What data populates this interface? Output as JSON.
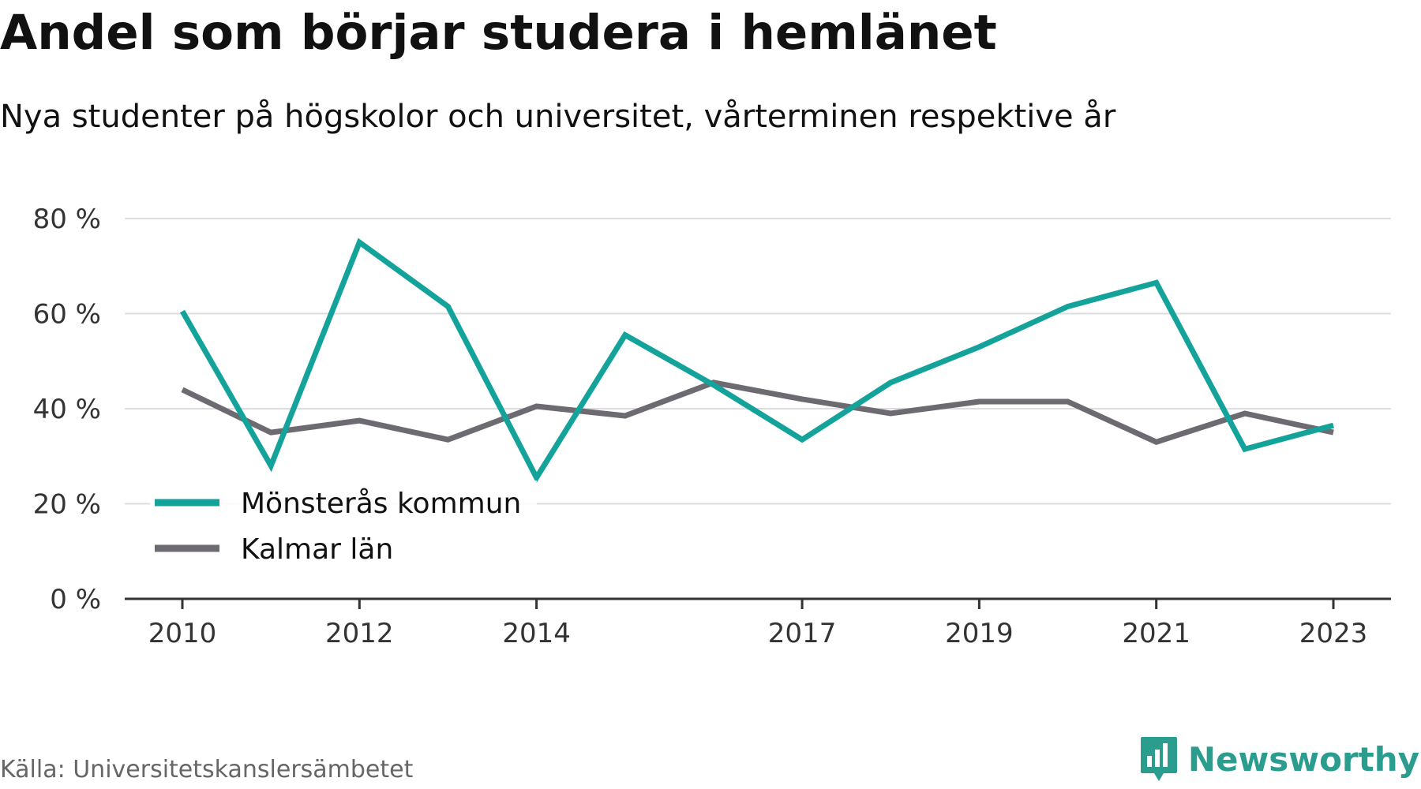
{
  "title": "Andel som börjar studera i hemlänet",
  "subtitle": "Nya studenter på högskolor och universitet, vårterminen respektive år",
  "source": "Källa: Universitetskanslersämbetet",
  "brand": {
    "name": "Newsworthy",
    "icon": "newsworthy-logo-icon",
    "color": "#2a9d8f"
  },
  "chart_data": {
    "type": "line",
    "title": "Andel som börjar studera i hemlänet",
    "subtitle": "Nya studenter på högskolor och universitet, vårterminen respektive år",
    "x": [
      2010,
      2011,
      2012,
      2013,
      2014,
      2015,
      2016,
      2017,
      2018,
      2019,
      2020,
      2021,
      2022,
      2023
    ],
    "x_tick_values": [
      2010,
      2012,
      2014,
      2017,
      2019,
      2021,
      2023
    ],
    "x_tick_labels": [
      "2010",
      "2012",
      "2014",
      "2017",
      "2019",
      "2021",
      "2023"
    ],
    "xlim": [
      2010,
      2023
    ],
    "ylim": [
      0,
      80
    ],
    "y_tick_values": [
      0,
      20,
      40,
      60,
      80
    ],
    "y_tick_labels": [
      "0 %",
      "20 %",
      "40 %",
      "60 %",
      "80 %"
    ],
    "grid": true,
    "legend_position": "bottom-left",
    "series": [
      {
        "name": "Mönsterås kommun",
        "color": "#14a39a",
        "values": [
          60.5,
          28,
          75,
          61.5,
          25.5,
          55.5,
          45,
          33.5,
          45.5,
          53,
          61.5,
          66.5,
          31.5,
          36.5
        ]
      },
      {
        "name": "Kalmar län",
        "color": "#6d6b71",
        "values": [
          44,
          35,
          37.5,
          33.5,
          40.5,
          38.5,
          45.5,
          42,
          39,
          41.5,
          41.5,
          33,
          39,
          35
        ]
      }
    ],
    "colors": {
      "grid": "#dddddd",
      "axis": "#333333",
      "tick_text": "#333333"
    }
  }
}
